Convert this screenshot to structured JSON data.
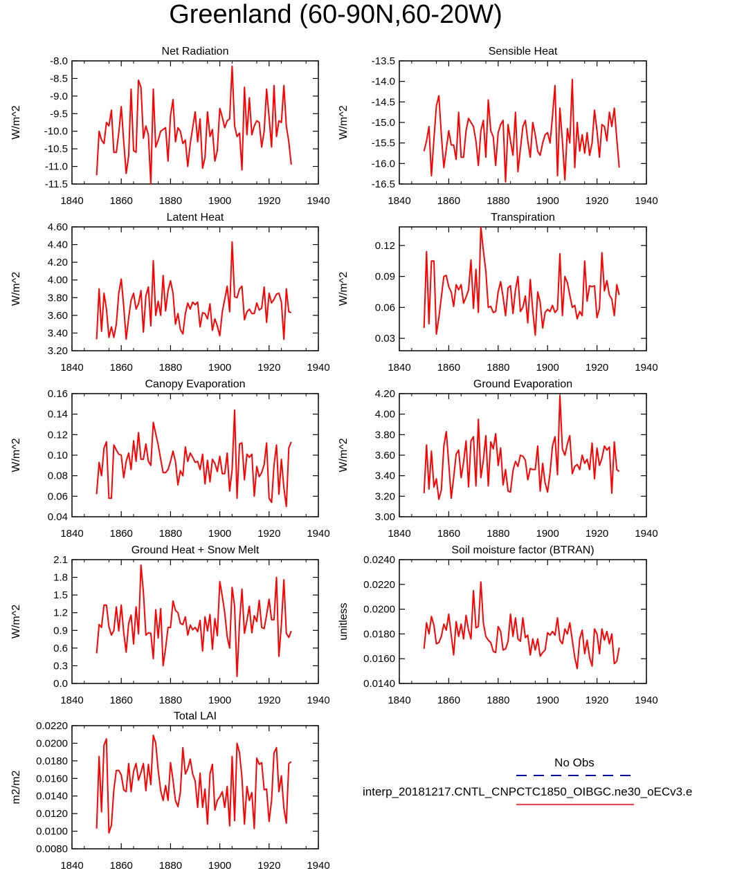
{
  "title": "Greenland (60-90N,60-20W)",
  "legend": {
    "obs_label": "No Obs",
    "obs_color": "#0000cc",
    "model_label": "interp_20181217.CNTL_CNPCTC1850_OIBGC.ne30_oECv3.e",
    "model_color": "#ff0000"
  },
  "chart_data": [
    {
      "type": "line",
      "title": "Net Radiation",
      "ylabel": "W/m^2",
      "xlim": [
        1840,
        1940
      ],
      "ylim": [
        -11.5,
        -8.0
      ],
      "xticks": [
        "1840",
        "1860",
        "1880",
        "1900",
        "1920",
        "1940"
      ],
      "yticks": [
        "-8.0",
        "-8.5",
        "-9.0",
        "-9.5",
        "-10.0",
        "-10.5",
        "-11.0",
        "-11.5"
      ],
      "x_start": 1850,
      "series": [
        {
          "color": "#ff0000",
          "values": [
            -11.25,
            -10.0,
            -10.25,
            -10.35,
            -9.75,
            -9.85,
            -9.4,
            -10.6,
            -10.6,
            -10.05,
            -9.3,
            -10.3,
            -11.2,
            -10.7,
            -8.8,
            -10.55,
            -10.6,
            -8.55,
            -8.75,
            -10.2,
            -9.85,
            -10.1,
            -11.5,
            -8.8,
            -10.45,
            -10.25,
            -10.0,
            -9.95,
            -9.9,
            -10.85,
            -9.55,
            -9.1,
            -10.3,
            -9.9,
            -10.0,
            -10.35,
            -10.25,
            -11.0,
            -10.35,
            -9.9,
            -9.45,
            -10.3,
            -9.65,
            -11.05,
            -10.75,
            -9.45,
            -10.15,
            -9.95,
            -10.85,
            -10.55,
            -9.35,
            -9.6,
            -9.9,
            -9.7,
            -9.65,
            -8.15,
            -9.85,
            -10.15,
            -10.05,
            -11.1,
            -8.75,
            -10.1,
            -9.05,
            -10.1,
            -9.85,
            -9.7,
            -9.75,
            -10.45,
            -10.0,
            -8.8,
            -9.6,
            -10.45,
            -8.7,
            -10.15,
            -9.7,
            -9.75,
            -8.7,
            -9.85,
            -10.3,
            -10.95
          ]
        }
      ]
    },
    {
      "type": "line",
      "title": "Sensible Heat",
      "ylabel": "W/m^2",
      "xlim": [
        1840,
        1940
      ],
      "ylim": [
        -16.5,
        -13.5
      ],
      "xticks": [
        "1840",
        "1860",
        "1880",
        "1900",
        "1920",
        "1940"
      ],
      "yticks": [
        "-13.5",
        "-14.0",
        "-14.5",
        "-15.0",
        "-15.5",
        "-16.0",
        "-16.5"
      ],
      "x_start": 1850,
      "series": [
        {
          "color": "#ff0000",
          "values": [
            -15.7,
            -15.45,
            -15.1,
            -16.3,
            -15.4,
            -14.6,
            -14.35,
            -15.3,
            -16.1,
            -15.65,
            -15.2,
            -15.55,
            -15.55,
            -15.9,
            -14.75,
            -15.85,
            -15.85,
            -15.2,
            -14.9,
            -15.0,
            -15.1,
            -15.45,
            -16.05,
            -15.2,
            -14.95,
            -15.85,
            -14.45,
            -15.2,
            -15.35,
            -16.05,
            -15.25,
            -15.05,
            -14.95,
            -16.45,
            -15.05,
            -15.45,
            -15.8,
            -14.75,
            -16.2,
            -15.65,
            -15.1,
            -14.95,
            -15.45,
            -15.85,
            -15.0,
            -15.3,
            -15.7,
            -15.8,
            -15.5,
            -15.3,
            -15.25,
            -15.5,
            -14.85,
            -14.1,
            -16.3,
            -14.65,
            -15.45,
            -16.4,
            -15.15,
            -15.5,
            -13.95,
            -16.1,
            -15.0,
            -15.7,
            -15.3,
            -15.75,
            -15.25,
            -15.8,
            -15.5,
            -14.7,
            -15.2,
            -15.85,
            -15.05,
            -15.1,
            -15.45,
            -14.75,
            -15.1,
            -14.65,
            -15.4,
            -16.1
          ]
        }
      ]
    },
    {
      "type": "line",
      "title": "Latent Heat",
      "ylabel": "W/m^2",
      "xlim": [
        1840,
        1940
      ],
      "ylim": [
        3.2,
        4.6
      ],
      "xticks": [
        "1840",
        "1860",
        "1880",
        "1900",
        "1920",
        "1940"
      ],
      "yticks": [
        "4.60",
        "4.40",
        "4.20",
        "4.00",
        "3.80",
        "3.60",
        "3.40",
        "3.20"
      ],
      "x_start": 1850,
      "series": [
        {
          "color": "#ff0000",
          "values": [
            3.33,
            3.9,
            3.42,
            3.85,
            3.67,
            3.35,
            3.47,
            3.35,
            3.5,
            3.85,
            4.01,
            3.7,
            3.33,
            3.57,
            3.77,
            3.85,
            3.67,
            3.73,
            3.88,
            3.41,
            3.82,
            3.92,
            3.48,
            4.22,
            3.6,
            3.76,
            3.6,
            4.05,
            3.65,
            3.88,
            3.99,
            3.85,
            3.5,
            3.62,
            3.44,
            3.39,
            3.62,
            3.74,
            3.67,
            3.75,
            3.72,
            3.75,
            3.47,
            3.63,
            3.62,
            3.56,
            3.73,
            3.43,
            3.56,
            3.48,
            3.37,
            3.64,
            3.78,
            3.93,
            3.64,
            4.43,
            3.81,
            3.8,
            3.9,
            3.93,
            3.55,
            3.64,
            3.67,
            3.62,
            3.62,
            3.74,
            3.66,
            3.68,
            3.92,
            3.52,
            3.85,
            3.74,
            3.78,
            3.84,
            3.85,
            3.75,
            3.33,
            3.9,
            3.64,
            3.63
          ]
        }
      ]
    },
    {
      "type": "line",
      "title": "Transpiration",
      "ylabel": "W/m^2",
      "xlim": [
        1840,
        1940
      ],
      "ylim": [
        0.018,
        0.138
      ],
      "xticks": [
        "1840",
        "1860",
        "1880",
        "1900",
        "1920",
        "1940"
      ],
      "yticks": [
        "0.12",
        "0.09",
        "0.06",
        "0.03"
      ],
      "x_start": 1850,
      "series": [
        {
          "color": "#ff0000",
          "values": [
            0.04,
            0.114,
            0.044,
            0.105,
            0.105,
            0.034,
            0.05,
            0.07,
            0.09,
            0.091,
            0.08,
            0.075,
            0.061,
            0.082,
            0.077,
            0.082,
            0.064,
            0.07,
            0.077,
            0.106,
            0.059,
            0.097,
            0.055,
            0.138,
            0.115,
            0.095,
            0.06,
            0.061,
            0.055,
            0.056,
            0.075,
            0.085,
            0.07,
            0.052,
            0.079,
            0.081,
            0.054,
            0.077,
            0.09,
            0.056,
            0.06,
            0.071,
            0.045,
            0.087,
            0.057,
            0.033,
            0.075,
            0.065,
            0.04,
            0.055,
            0.058,
            0.056,
            0.062,
            0.055,
            0.058,
            0.112,
            0.052,
            0.09,
            0.084,
            0.072,
            0.06,
            0.062,
            0.049,
            0.056,
            0.052,
            0.105,
            0.066,
            0.081,
            0.08,
            0.081,
            0.05,
            0.059,
            0.113,
            0.076,
            0.086,
            0.072,
            0.068,
            0.052,
            0.082,
            0.072
          ]
        }
      ]
    },
    {
      "type": "line",
      "title": "Canopy Evaporation",
      "ylabel": "W/m^2",
      "xlim": [
        1840,
        1940
      ],
      "ylim": [
        0.04,
        0.16
      ],
      "xticks": [
        "1840",
        "1860",
        "1880",
        "1900",
        "1920",
        "1940"
      ],
      "yticks": [
        "0.16",
        "0.14",
        "0.12",
        "0.10",
        "0.08",
        "0.06",
        "0.04"
      ],
      "x_start": 1850,
      "series": [
        {
          "color": "#ff0000",
          "values": [
            0.062,
            0.093,
            0.08,
            0.107,
            0.113,
            0.058,
            0.058,
            0.11,
            0.105,
            0.101,
            0.1,
            0.078,
            0.094,
            0.102,
            0.086,
            0.114,
            0.094,
            0.122,
            0.096,
            0.096,
            0.111,
            0.094,
            0.09,
            0.132,
            0.121,
            0.11,
            0.096,
            0.083,
            0.083,
            0.086,
            0.094,
            0.104,
            0.094,
            0.071,
            0.085,
            0.08,
            0.108,
            0.094,
            0.102,
            0.098,
            0.093,
            0.094,
            0.086,
            0.101,
            0.072,
            0.095,
            0.074,
            0.096,
            0.092,
            0.084,
            0.099,
            0.082,
            0.082,
            0.102,
            0.065,
            0.086,
            0.144,
            0.058,
            0.111,
            0.112,
            0.076,
            0.101,
            0.098,
            0.101,
            0.06,
            0.089,
            0.079,
            0.083,
            0.091,
            0.112,
            0.058,
            0.054,
            0.09,
            0.11,
            0.062,
            0.096,
            0.068,
            0.05,
            0.107,
            0.113
          ]
        }
      ]
    },
    {
      "type": "line",
      "title": "Ground Evaporation",
      "ylabel": "W/m^2",
      "xlim": [
        1840,
        1940
      ],
      "ylim": [
        3.0,
        4.2
      ],
      "xticks": [
        "1840",
        "1860",
        "1880",
        "1900",
        "1920",
        "1940"
      ],
      "yticks": [
        "4.20",
        "4.00",
        "3.80",
        "3.60",
        "3.40",
        "3.20",
        "3.00"
      ],
      "x_start": 1850,
      "series": [
        {
          "color": "#ff0000",
          "values": [
            3.23,
            3.7,
            3.27,
            3.64,
            3.29,
            3.37,
            3.17,
            3.26,
            3.69,
            3.83,
            3.52,
            3.18,
            3.38,
            3.61,
            3.65,
            3.38,
            3.53,
            3.74,
            3.29,
            3.74,
            3.78,
            3.3,
            3.95,
            3.38,
            3.55,
            3.79,
            3.3,
            3.73,
            3.66,
            3.81,
            3.5,
            3.67,
            3.31,
            3.46,
            3.25,
            3.24,
            3.45,
            3.54,
            3.49,
            3.6,
            3.59,
            3.55,
            3.36,
            3.47,
            3.46,
            3.46,
            3.69,
            3.25,
            3.52,
            3.33,
            3.24,
            3.43,
            3.69,
            3.78,
            3.41,
            4.18,
            3.66,
            3.6,
            3.71,
            3.79,
            3.42,
            3.49,
            3.51,
            3.46,
            3.6,
            3.52,
            3.56,
            3.46,
            3.72,
            3.37,
            3.67,
            3.5,
            3.57,
            3.69,
            3.65,
            3.68,
            3.23,
            3.73,
            3.46,
            3.44
          ]
        }
      ]
    },
    {
      "type": "line",
      "title": "Ground Heat + Snow Melt",
      "ylabel": "W/m^2",
      "xlim": [
        1840,
        1940
      ],
      "ylim": [
        0.0,
        2.1
      ],
      "xticks": [
        "1840",
        "1860",
        "1880",
        "1900",
        "1920",
        "1940"
      ],
      "yticks": [
        "2.1",
        "1.8",
        "1.5",
        "1.2",
        "0.9",
        "0.6",
        "0.3",
        "0.0"
      ],
      "x_start": 1850,
      "series": [
        {
          "color": "#ff0000",
          "values": [
            0.51,
            1.0,
            0.95,
            1.33,
            1.33,
            0.96,
            0.82,
            0.9,
            1.3,
            0.89,
            1.33,
            0.86,
            0.53,
            1.02,
            1.16,
            0.67,
            1.3,
            0.84,
            2.01,
            1.55,
            0.82,
            0.86,
            0.85,
            0.42,
            1.25,
            0.77,
            1.27,
            0.3,
            0.6,
            0.95,
            0.95,
            1.4,
            1.24,
            1.2,
            1.02,
            1.0,
            1.13,
            0.82,
            0.99,
            0.91,
            0.95,
            0.88,
            1.07,
            0.55,
            1.13,
            0.89,
            1.17,
            0.58,
            1.1,
            0.81,
            1.73,
            1.48,
            1.2,
            0.79,
            0.6,
            1.63,
            1.31,
            0.12,
            1.03,
            1.6,
            0.85,
            1.07,
            1.31,
            0.86,
            1.15,
            1.05,
            1.41,
            0.95,
            0.93,
            1.16,
            1.43,
            1.08,
            1.08,
            1.8,
            0.46,
            1.0,
            1.76,
            0.85,
            0.78,
            0.89
          ]
        }
      ]
    },
    {
      "type": "line",
      "title": "Soil moisture factor (BTRAN)",
      "ylabel": "unitless",
      "xlim": [
        1840,
        1940
      ],
      "ylim": [
        0.014,
        0.024
      ],
      "xticks": [
        "1840",
        "1860",
        "1880",
        "1900",
        "1920",
        "1940"
      ],
      "yticks": [
        "0.0240",
        "0.0220",
        "0.0200",
        "0.0180",
        "0.0160",
        "0.0140"
      ],
      "x_start": 1850,
      "series": [
        {
          "color": "#ff0000",
          "values": [
            0.0168,
            0.0189,
            0.018,
            0.0194,
            0.0187,
            0.0172,
            0.0173,
            0.0178,
            0.0188,
            0.0183,
            0.0196,
            0.0179,
            0.0163,
            0.019,
            0.0178,
            0.0188,
            0.0176,
            0.0195,
            0.0183,
            0.0176,
            0.0215,
            0.0185,
            0.0186,
            0.0222,
            0.0189,
            0.0178,
            0.0175,
            0.0173,
            0.0166,
            0.0165,
            0.0186,
            0.0182,
            0.0167,
            0.0168,
            0.0174,
            0.0196,
            0.0178,
            0.0193,
            0.0176,
            0.0174,
            0.0193,
            0.0177,
            0.0179,
            0.0163,
            0.0176,
            0.0167,
            0.0176,
            0.0162,
            0.0165,
            0.0167,
            0.0181,
            0.0179,
            0.0182,
            0.0179,
            0.0193,
            0.0175,
            0.0172,
            0.0184,
            0.018,
            0.0189,
            0.0175,
            0.0161,
            0.0152,
            0.0176,
            0.0183,
            0.0164,
            0.0175,
            0.0161,
            0.0154,
            0.0184,
            0.018,
            0.0164,
            0.0184,
            0.0175,
            0.0182,
            0.0172,
            0.018,
            0.0156,
            0.0158,
            0.0169
          ]
        }
      ]
    },
    {
      "type": "line",
      "title": "Total LAI",
      "ylabel": "m2/m2",
      "xlim": [
        1840,
        1940
      ],
      "ylim": [
        0.008,
        0.022
      ],
      "xticks": [
        "1840",
        "1860",
        "1880",
        "1900",
        "1920",
        "1940"
      ],
      "yticks": [
        "0.0220",
        "0.0200",
        "0.0180",
        "0.0160",
        "0.0140",
        "0.0120",
        "0.0100",
        "0.0080"
      ],
      "x_start": 1850,
      "series": [
        {
          "color": "#ff0000",
          "values": [
            0.0103,
            0.0185,
            0.0122,
            0.0198,
            0.0205,
            0.0098,
            0.0107,
            0.0147,
            0.0169,
            0.0169,
            0.0164,
            0.0147,
            0.0145,
            0.0177,
            0.0145,
            0.0168,
            0.0177,
            0.0158,
            0.0167,
            0.0177,
            0.0146,
            0.0176,
            0.0153,
            0.0209,
            0.02,
            0.0169,
            0.0146,
            0.0135,
            0.0152,
            0.0135,
            0.0178,
            0.0158,
            0.0135,
            0.0128,
            0.0144,
            0.0195,
            0.0165,
            0.0171,
            0.0182,
            0.0165,
            0.0157,
            0.0127,
            0.0166,
            0.0127,
            0.0148,
            0.0108,
            0.0165,
            0.0176,
            0.0124,
            0.0135,
            0.0139,
            0.0145,
            0.0127,
            0.0151,
            0.0106,
            0.0185,
            0.0112,
            0.02,
            0.0189,
            0.0161,
            0.0108,
            0.0151,
            0.0135,
            0.0144,
            0.0103,
            0.0183,
            0.0176,
            0.0178,
            0.0147,
            0.0148,
            0.0111,
            0.0135,
            0.0189,
            0.0195,
            0.0145,
            0.0163,
            0.0126,
            0.0109,
            0.0177,
            0.0179
          ]
        }
      ]
    }
  ]
}
